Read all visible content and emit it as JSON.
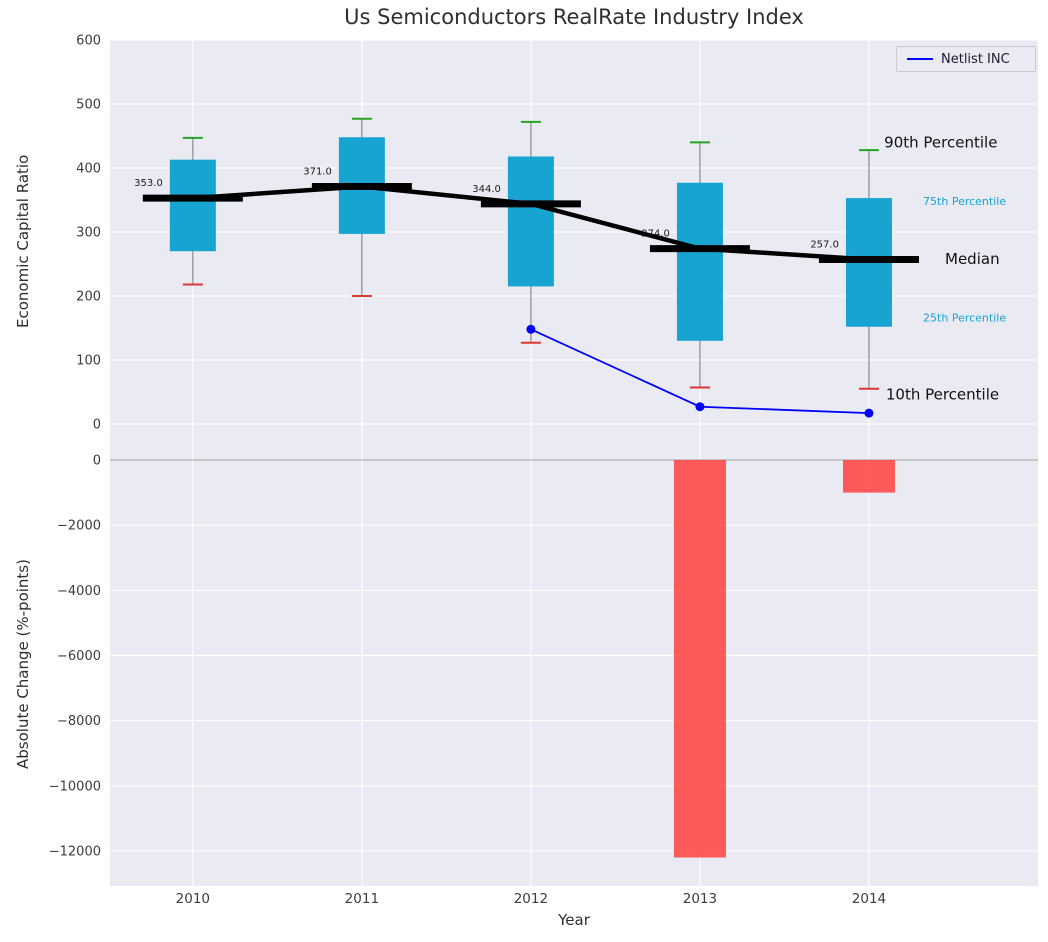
{
  "title": "Us Semiconductors RealRate Industry Index",
  "xlabel": "Year",
  "legend": {
    "label": "Netlist INC"
  },
  "colors": {
    "panel_bg": "#eaebf2",
    "grid": "#ffffff",
    "box_fill": "#17a4d0",
    "bar_fill": "#ff4040",
    "median": "#000000",
    "whisker": "#8a8a8a",
    "cap_top": "#27a327",
    "cap_bottom": "#e03535",
    "netlist_line": "#0000ff",
    "zero_line": "#b0b0b0",
    "tick_text": "#3d3d3d",
    "annotation_blue": "#17a4d0"
  },
  "chart_data": [
    {
      "type": "boxplot",
      "title": "Us Semiconductors RealRate Industry Index",
      "ylabel": "Economic Capital Ratio",
      "ylim": [
        -28,
        600
      ],
      "yticks": [
        0,
        100,
        200,
        300,
        400,
        500,
        600
      ],
      "categories": [
        2010,
        2011,
        2012,
        2013,
        2014
      ],
      "boxes": [
        {
          "year": 2010,
          "p10": 218,
          "p25": 270,
          "median": 353,
          "p75": 413,
          "p90": 447,
          "label": "353.0"
        },
        {
          "year": 2011,
          "p10": 200,
          "p25": 297,
          "median": 371,
          "p75": 448,
          "p90": 477,
          "label": "371.0"
        },
        {
          "year": 2012,
          "p10": 127,
          "p25": 215,
          "median": 344,
          "p75": 418,
          "p90": 472,
          "label": "344.0"
        },
        {
          "year": 2013,
          "p10": 57,
          "p25": 130,
          "median": 274,
          "p75": 377,
          "p90": 440,
          "label": "274.0"
        },
        {
          "year": 2014,
          "p10": 55,
          "p25": 152,
          "median": 257,
          "p75": 353,
          "p90": 428,
          "label": "257.0"
        }
      ],
      "series": [
        {
          "name": "Netlist INC",
          "x": [
            2012,
            2013,
            2014
          ],
          "y": [
            148,
            27,
            17
          ]
        }
      ],
      "annotations": [
        {
          "text": "90th Percentile",
          "x": 2014.09,
          "y": 432,
          "size": 15,
          "color": "#111111"
        },
        {
          "text": "75th Percentile",
          "x": 2014.32,
          "y": 342,
          "size": 11,
          "color": "#17a4d0"
        },
        {
          "text": "Median",
          "x": 2014.45,
          "y": 250,
          "size": 15,
          "color": "#111111"
        },
        {
          "text": "25th Percentile",
          "x": 2014.32,
          "y": 160,
          "size": 11,
          "color": "#17a4d0"
        },
        {
          "text": "10th Percentile",
          "x": 2014.1,
          "y": 38,
          "size": 15,
          "color": "#111111"
        }
      ],
      "legend_position": "upper right",
      "grid": true
    },
    {
      "type": "bar",
      "ylabel": "Absolute Change (%-points)",
      "ylim": [
        -13075,
        552
      ],
      "yticks": [
        0,
        -2000,
        -4000,
        -6000,
        -8000,
        -10000,
        -12000
      ],
      "categories": [
        2010,
        2011,
        2012,
        2013,
        2014
      ],
      "values": [
        0,
        0,
        0,
        -12200,
        -1000
      ],
      "xlabel": "Year",
      "grid": true
    }
  ]
}
